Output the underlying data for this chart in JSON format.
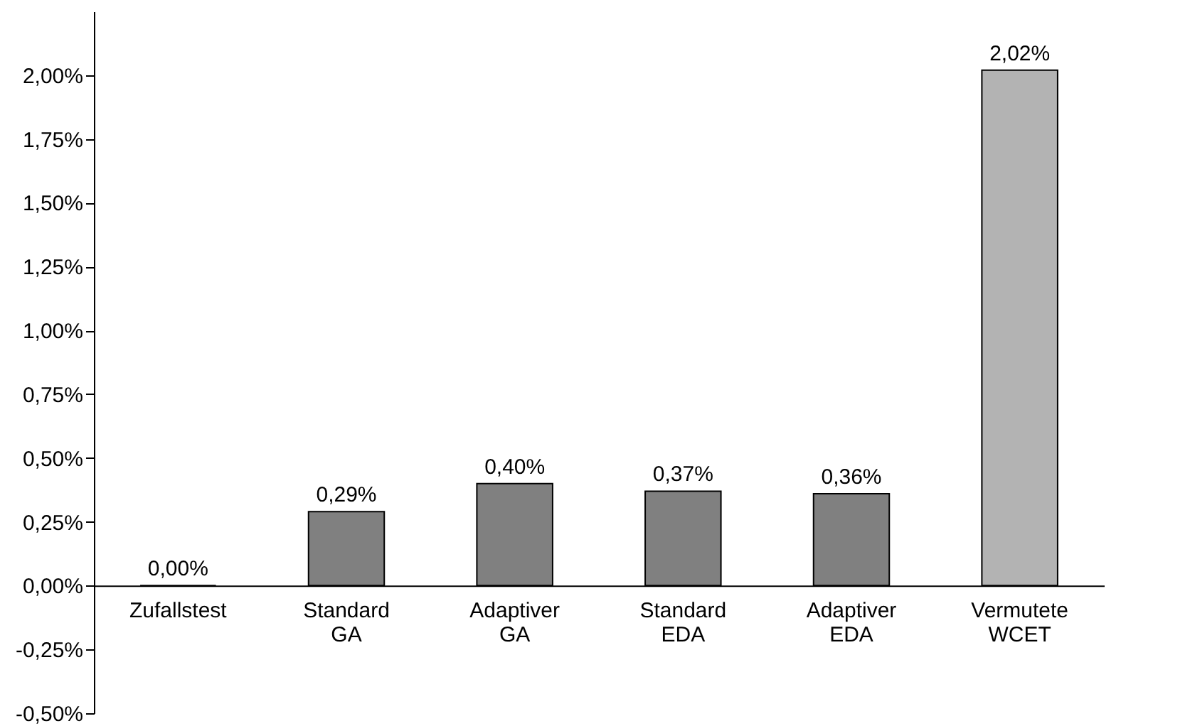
{
  "chart_data": {
    "type": "bar",
    "categories": [
      "Zufallstest",
      "Standard\nGA",
      "Adaptiver\nGA",
      "Standard\nEDA",
      "Adaptiver\nEDA",
      "Vermutete\nWCET"
    ],
    "values": [
      0.0,
      0.29,
      0.4,
      0.37,
      0.36,
      2.02
    ],
    "value_labels": [
      "0,00%",
      "0,29%",
      "0,40%",
      "0,37%",
      "0,36%",
      "2,02%"
    ],
    "colors": [
      "#808080",
      "#808080",
      "#808080",
      "#808080",
      "#808080",
      "#b3b3b3"
    ],
    "ylim": [
      -0.5,
      2.25
    ],
    "yticks": [
      {
        "value": -0.5,
        "label": "-0,50%"
      },
      {
        "value": -0.25,
        "label": "-0,25%"
      },
      {
        "value": 0,
        "label": "0,00%"
      },
      {
        "value": 0.25,
        "label": "0,25%"
      },
      {
        "value": 0.5,
        "label": "0,50%"
      },
      {
        "value": 0.75,
        "label": "0,75%"
      },
      {
        "value": 1,
        "label": "1,00%"
      },
      {
        "value": 1.25,
        "label": "1,25%"
      },
      {
        "value": 1.5,
        "label": "1,50%"
      },
      {
        "value": 1.75,
        "label": "1,75%"
      },
      {
        "value": 2,
        "label": "2,00%"
      }
    ],
    "grid": false
  }
}
